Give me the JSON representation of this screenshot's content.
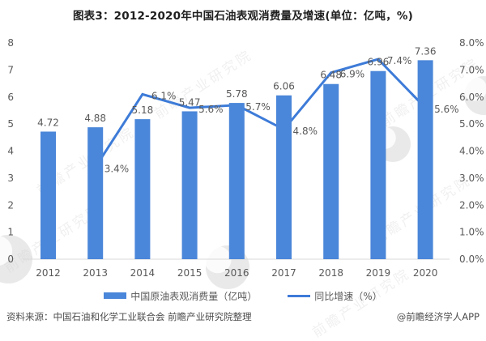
{
  "title": "图表3：2012-2020年中国石油表观消费量及增速(单位：亿吨，%)",
  "colors": {
    "bar": "#4a86d9",
    "line": "#3d7bd8",
    "label_text": "#595959",
    "axis_text": "#595959",
    "axis_line": "#d9d9d9",
    "title_text": "#1f1f1f",
    "footer_text": "#4d4d4d",
    "watermark": "#9a9a9a"
  },
  "chart_data": {
    "type": "combo",
    "categories": [
      "2012",
      "2013",
      "2014",
      "2015",
      "2016",
      "2017",
      "2018",
      "2019",
      "2020"
    ],
    "series": [
      {
        "name": "中国原油表观消费量（亿吨）",
        "type": "bar",
        "axis": "left",
        "values": [
          4.72,
          4.88,
          5.18,
          5.47,
          5.78,
          6.06,
          6.48,
          6.96,
          7.36
        ],
        "labels": [
          "4.72",
          "4.88",
          "5.18",
          "5.47",
          "5.78",
          "6.06",
          "6.48",
          "6.96",
          "7.36"
        ]
      },
      {
        "name": "同比增速（%）",
        "type": "line",
        "axis": "right",
        "values": [
          null,
          3.4,
          6.1,
          5.6,
          5.7,
          4.8,
          6.9,
          7.4,
          5.6
        ],
        "labels": [
          "",
          "3.4%",
          "6.1%",
          "5.6%",
          "5.7%",
          "4.8%",
          "6.9%",
          "7.4%",
          "5.6%"
        ]
      }
    ],
    "left_axis": {
      "min": 0,
      "max": 8,
      "ticks": [
        "0",
        "1",
        "2",
        "3",
        "4",
        "5",
        "6",
        "7",
        "8"
      ]
    },
    "right_axis": {
      "min": 0,
      "max": 8,
      "ticks": [
        "0.0%",
        "1.0%",
        "2.0%",
        "3.0%",
        "4.0%",
        "5.0%",
        "6.0%",
        "7.0%",
        "8.0%"
      ]
    },
    "grid": false,
    "legend_position": "bottom"
  },
  "legend": {
    "items": [
      {
        "label": "中国原油表观消费量（亿吨）"
      },
      {
        "label": "同比增速（%）"
      }
    ]
  },
  "footer": {
    "source": "资料来源：中国石油和化学工业联合会 前瞻产业研究院整理",
    "credit": "@前瞻经济学人APP"
  },
  "watermark": {
    "text": "前瞻产业研究院"
  }
}
